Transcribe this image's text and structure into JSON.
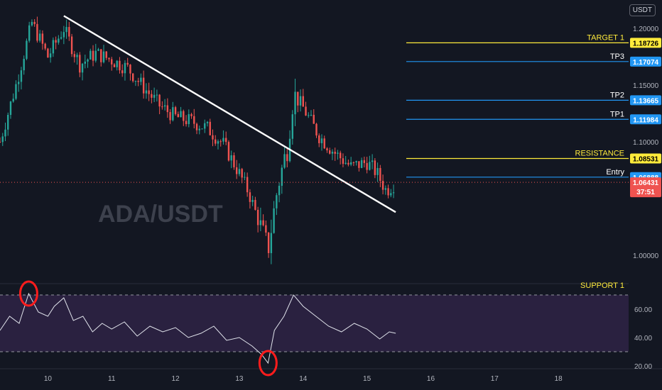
{
  "currency": "USDT",
  "watermark": "ADA/USDT",
  "colors": {
    "background": "#131722",
    "bull": "#26a69a",
    "bear": "#ef5350",
    "yellow": "#ffeb3b",
    "blue": "#2196f3",
    "trend": "#ffffff",
    "rsi_bg": "#2a2140",
    "rsi_line": "#e0e3eb",
    "highlight": "#ff1c1c"
  },
  "chart_data": {
    "type": "candlestick",
    "price_axis": {
      "ticks": [
        {
          "value": 1.2,
          "label": "1.20000"
        },
        {
          "value": 1.15,
          "label": "1.15000"
        },
        {
          "value": 1.1,
          "label": "1.10000"
        },
        {
          "value": 1.0,
          "label": "1.00000"
        }
      ],
      "ylim": [
        0.975,
        1.225
      ]
    },
    "time_axis": {
      "ticks": [
        {
          "day": 10,
          "label": "10"
        },
        {
          "day": 11,
          "label": "11"
        },
        {
          "day": 12,
          "label": "12"
        },
        {
          "day": 13,
          "label": "13"
        },
        {
          "day": 14,
          "label": "14"
        },
        {
          "day": 15,
          "label": "15"
        },
        {
          "day": 16,
          "label": "16"
        },
        {
          "day": 17,
          "label": "17"
        },
        {
          "day": 18,
          "label": "18"
        }
      ],
      "xlim": [
        9.25,
        19.1
      ]
    },
    "levels": [
      {
        "name": "TARGET 1",
        "value": 1.18726,
        "label": "1.18726",
        "color": "yellow"
      },
      {
        "name": "TP3",
        "value": 1.17074,
        "label": "1.17074",
        "color": "blue"
      },
      {
        "name": "TP2",
        "value": 1.13665,
        "label": "1.13665",
        "color": "blue"
      },
      {
        "name": "TP1",
        "value": 1.11984,
        "label": "1.11984",
        "color": "blue"
      },
      {
        "name": "RESISTANCE",
        "value": 1.08531,
        "label": "1.08531",
        "color": "yellow"
      },
      {
        "name": "Entry",
        "value": 1.06888,
        "label": "1.06888",
        "color": "blue"
      }
    ],
    "support_label": "SUPPORT 1",
    "current_price": {
      "value": 1.06431,
      "label": "1.06431",
      "countdown": "37:51"
    },
    "trendline": {
      "start": {
        "day": 10.25,
        "price": 1.211
      },
      "end": {
        "day": 15.45,
        "price": 1.038
      }
    },
    "price_path": [
      {
        "day": 9.25,
        "price": 1.1
      },
      {
        "day": 9.5,
        "price": 1.15
      },
      {
        "day": 9.75,
        "price": 1.205
      },
      {
        "day": 10.0,
        "price": 1.175
      },
      {
        "day": 10.25,
        "price": 1.2
      },
      {
        "day": 10.5,
        "price": 1.168
      },
      {
        "day": 10.75,
        "price": 1.178
      },
      {
        "day": 11.0,
        "price": 1.172
      },
      {
        "day": 11.25,
        "price": 1.165
      },
      {
        "day": 11.5,
        "price": 1.148
      },
      {
        "day": 11.75,
        "price": 1.132
      },
      {
        "day": 12.0,
        "price": 1.122
      },
      {
        "day": 12.25,
        "price": 1.118
      },
      {
        "day": 12.5,
        "price": 1.112
      },
      {
        "day": 12.75,
        "price": 1.098
      },
      {
        "day": 13.0,
        "price": 1.072
      },
      {
        "day": 13.15,
        "price": 1.055
      },
      {
        "day": 13.35,
        "price": 1.022
      },
      {
        "day": 13.45,
        "price": 1.005
      },
      {
        "day": 13.6,
        "price": 1.06
      },
      {
        "day": 13.75,
        "price": 1.095
      },
      {
        "day": 13.85,
        "price": 1.142
      },
      {
        "day": 14.0,
        "price": 1.13
      },
      {
        "day": 14.25,
        "price": 1.105
      },
      {
        "day": 14.5,
        "price": 1.09
      },
      {
        "day": 14.75,
        "price": 1.078
      },
      {
        "day": 15.0,
        "price": 1.082
      },
      {
        "day": 15.15,
        "price": 1.073
      },
      {
        "day": 15.3,
        "price": 1.057
      },
      {
        "day": 15.45,
        "price": 1.064
      }
    ],
    "rsi": {
      "ticks": [
        {
          "value": 60,
          "label": "60.00"
        },
        {
          "value": 40,
          "label": "40.00"
        },
        {
          "value": 20,
          "label": "20.00"
        }
      ],
      "overbought": 70,
      "oversold": 30,
      "ylim": [
        18,
        78
      ],
      "values": [
        {
          "day": 9.25,
          "v": 45
        },
        {
          "day": 9.4,
          "v": 55
        },
        {
          "day": 9.55,
          "v": 50
        },
        {
          "day": 9.7,
          "v": 71
        },
        {
          "day": 9.85,
          "v": 58
        },
        {
          "day": 10.0,
          "v": 55
        },
        {
          "day": 10.1,
          "v": 62
        },
        {
          "day": 10.25,
          "v": 68
        },
        {
          "day": 10.4,
          "v": 52
        },
        {
          "day": 10.55,
          "v": 55
        },
        {
          "day": 10.7,
          "v": 44
        },
        {
          "day": 10.85,
          "v": 50
        },
        {
          "day": 11.0,
          "v": 46
        },
        {
          "day": 11.2,
          "v": 51
        },
        {
          "day": 11.4,
          "v": 41
        },
        {
          "day": 11.6,
          "v": 48
        },
        {
          "day": 11.8,
          "v": 44
        },
        {
          "day": 12.0,
          "v": 47
        },
        {
          "day": 12.2,
          "v": 40
        },
        {
          "day": 12.4,
          "v": 43
        },
        {
          "day": 12.6,
          "v": 48
        },
        {
          "day": 12.8,
          "v": 38
        },
        {
          "day": 13.0,
          "v": 40
        },
        {
          "day": 13.2,
          "v": 34
        },
        {
          "day": 13.35,
          "v": 28
        },
        {
          "day": 13.45,
          "v": 22
        },
        {
          "day": 13.55,
          "v": 45
        },
        {
          "day": 13.7,
          "v": 55
        },
        {
          "day": 13.85,
          "v": 70
        },
        {
          "day": 14.0,
          "v": 62
        },
        {
          "day": 14.2,
          "v": 55
        },
        {
          "day": 14.4,
          "v": 48
        },
        {
          "day": 14.6,
          "v": 44
        },
        {
          "day": 14.8,
          "v": 50
        },
        {
          "day": 15.0,
          "v": 46
        },
        {
          "day": 15.2,
          "v": 39
        },
        {
          "day": 15.35,
          "v": 44
        },
        {
          "day": 15.45,
          "v": 43
        }
      ],
      "highlights": [
        {
          "day": 9.7,
          "v": 71
        },
        {
          "day": 13.45,
          "v": 22
        }
      ]
    }
  }
}
